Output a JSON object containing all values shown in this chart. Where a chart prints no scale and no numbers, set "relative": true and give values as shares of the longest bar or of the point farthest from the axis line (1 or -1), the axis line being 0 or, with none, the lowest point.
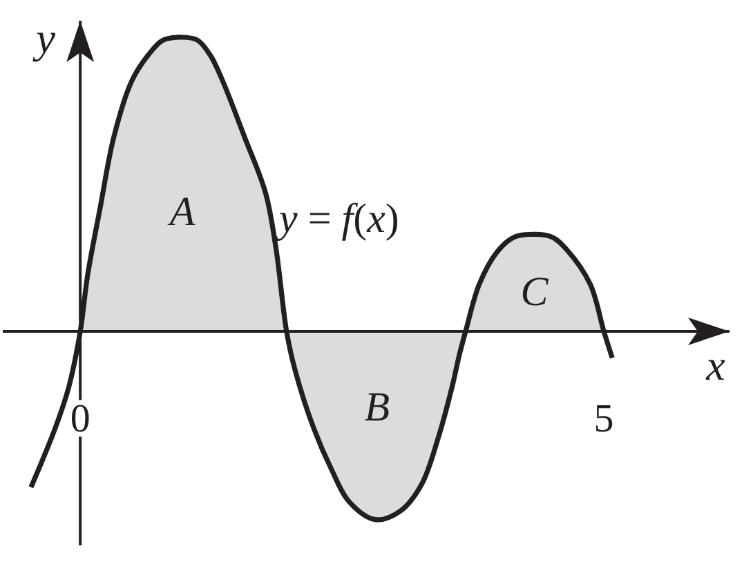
{
  "chart_data": {
    "type": "line",
    "relative": true,
    "xlabel": "x",
    "ylabel": "y",
    "xlim": [
      -0.74,
      6.2
    ],
    "xticks": [
      0,
      5
    ],
    "series": [
      {
        "type": "area",
        "color": "#dcdcdc",
        "x": [
          0,
          0.07,
          0.19,
          0.32,
          0.49,
          0.65,
          0.79,
          0.98,
          1.12,
          1.24,
          1.35,
          1.57,
          1.77,
          1.87,
          1.97,
          2.05,
          2.23,
          2.4,
          2.57,
          2.82,
          3.06,
          3.26,
          3.42,
          3.55,
          3.62,
          3.68,
          3.81,
          3.98,
          4.14,
          4.34,
          4.51,
          4.64,
          4.87,
          5
        ],
        "values": [
          0,
          0.19,
          0.42,
          0.66,
          0.85,
          0.94,
          0.99,
          1,
          0.99,
          0.94,
          0.86,
          0.66,
          0.47,
          0.28,
          0,
          -0.13,
          -0.33,
          -0.47,
          -0.58,
          -0.64,
          -0.61,
          -0.52,
          -0.36,
          -0.19,
          -0.08,
          0,
          0.16,
          0.27,
          0.32,
          0.33,
          0.32,
          0.28,
          0.16,
          0
        ]
      },
      {
        "type": "line",
        "name": "y = f(x)",
        "color": "#231f20",
        "x": [
          -0.47,
          -0.24,
          -0.11,
          0,
          0.07,
          0.19,
          0.32,
          0.49,
          0.65,
          0.79,
          0.98,
          1.12,
          1.24,
          1.35,
          1.57,
          1.77,
          1.87,
          1.97,
          2.05,
          2.23,
          2.4,
          2.57,
          2.82,
          3.06,
          3.26,
          3.42,
          3.55,
          3.62,
          3.68,
          3.81,
          3.98,
          4.14,
          4.34,
          4.51,
          4.64,
          4.87,
          5,
          5.08
        ],
        "values": [
          -0.53,
          -0.33,
          -0.19,
          0,
          0.19,
          0.42,
          0.66,
          0.85,
          0.94,
          0.99,
          1,
          0.99,
          0.94,
          0.86,
          0.66,
          0.47,
          0.28,
          0,
          -0.13,
          -0.33,
          -0.47,
          -0.58,
          -0.64,
          -0.61,
          -0.52,
          -0.36,
          -0.19,
          -0.08,
          0,
          0.16,
          0.27,
          0.32,
          0.33,
          0.32,
          0.28,
          0.16,
          0,
          -0.09
        ]
      }
    ],
    "annotations": [
      "A",
      "B",
      "C"
    ]
  }
}
